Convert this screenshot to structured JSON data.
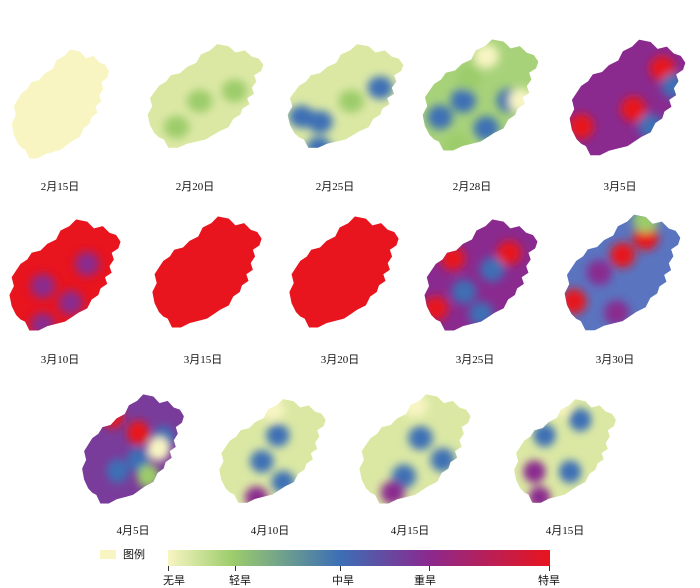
{
  "legend": {
    "title": "图例",
    "levels": [
      "无旱",
      "轻旱",
      "中旱",
      "重旱",
      "特旱"
    ],
    "colors": {
      "none": "#f8f5c3",
      "light": "#9ccc6a",
      "moderate": "#3c6fb5",
      "severe": "#8a2a8f",
      "extreme": "#e8141e"
    }
  },
  "panels": [
    {
      "date": "2月15日",
      "base": "none",
      "spots": []
    },
    {
      "date": "2月20日",
      "base": "light_pale",
      "spots": [
        {
          "level": "light",
          "u": 0.45,
          "v": 0.55
        },
        {
          "level": "light",
          "u": 0.75,
          "v": 0.45
        },
        {
          "level": "light",
          "u": 0.25,
          "v": 0.8
        }
      ]
    },
    {
      "date": "2月25日",
      "base": "light_pale",
      "spots": [
        {
          "level": "moderate",
          "u": 0.12,
          "v": 0.7
        },
        {
          "level": "moderate",
          "u": 0.28,
          "v": 0.75
        },
        {
          "level": "moderate",
          "u": 0.8,
          "v": 0.42
        },
        {
          "level": "moderate",
          "u": 0.27,
          "v": 1.0
        },
        {
          "level": "light",
          "u": 0.55,
          "v": 0.55
        }
      ]
    },
    {
      "date": "2月28日",
      "base": "mixed",
      "spots": [
        {
          "level": "moderate",
          "u": 0.15,
          "v": 0.7
        },
        {
          "level": "moderate",
          "u": 0.35,
          "v": 0.55
        },
        {
          "level": "moderate",
          "u": 0.55,
          "v": 0.8
        },
        {
          "level": "moderate",
          "u": 0.75,
          "v": 0.55
        },
        {
          "level": "none",
          "u": 0.55,
          "v": 0.15
        },
        {
          "level": "none",
          "u": 0.85,
          "v": 0.55
        },
        {
          "level": "light",
          "u": 0.4,
          "v": 0.35
        },
        {
          "level": "light",
          "u": 0.3,
          "v": 0.95
        }
      ]
    },
    {
      "date": "3月5日",
      "base": "severe",
      "spots": [
        {
          "level": "extreme",
          "u": 0.1,
          "v": 0.75
        },
        {
          "level": "extreme",
          "u": 0.55,
          "v": 0.6
        },
        {
          "level": "extreme",
          "u": 0.8,
          "v": 0.25
        },
        {
          "level": "moderate",
          "u": 0.7,
          "v": 0.75
        },
        {
          "level": "moderate",
          "u": 0.9,
          "v": 0.4
        }
      ]
    },
    {
      "date": "3月10日",
      "base": "extreme",
      "spots": [
        {
          "level": "severe",
          "u": 0.3,
          "v": 0.6
        },
        {
          "level": "severe",
          "u": 0.55,
          "v": 0.75
        },
        {
          "level": "severe",
          "u": 0.7,
          "v": 0.4
        },
        {
          "level": "severe",
          "u": 0.3,
          "v": 0.95
        }
      ]
    },
    {
      "date": "3月15日",
      "base": "extreme",
      "spots": []
    },
    {
      "date": "3月20日",
      "base": "extreme",
      "spots": []
    },
    {
      "date": "3月25日",
      "base": "severe",
      "spots": [
        {
          "level": "moderate",
          "u": 0.35,
          "v": 0.65
        },
        {
          "level": "moderate",
          "u": 0.6,
          "v": 0.45
        },
        {
          "level": "moderate",
          "u": 0.5,
          "v": 0.85
        },
        {
          "level": "extreme",
          "u": 0.25,
          "v": 0.35
        },
        {
          "level": "extreme",
          "u": 0.75,
          "v": 0.3
        },
        {
          "level": "extreme",
          "u": 0.1,
          "v": 0.8
        }
      ]
    },
    {
      "date": "3月30日",
      "base": "moderate",
      "spots": [
        {
          "level": "extreme",
          "u": 0.08,
          "v": 0.75
        },
        {
          "level": "extreme",
          "u": 0.5,
          "v": 0.35
        },
        {
          "level": "extreme",
          "u": 0.7,
          "v": 0.2
        },
        {
          "level": "severe",
          "u": 0.3,
          "v": 0.5
        },
        {
          "level": "severe",
          "u": 0.45,
          "v": 0.85
        },
        {
          "level": "light",
          "u": 0.7,
          "v": 0.05
        }
      ]
    },
    {
      "date": "4月5日",
      "base": "severe_mixed",
      "spots": [
        {
          "level": "extreme",
          "u": 0.3,
          "v": 0.2
        },
        {
          "level": "extreme",
          "u": 0.55,
          "v": 0.35
        },
        {
          "level": "moderate",
          "u": 0.55,
          "v": 0.6
        },
        {
          "level": "moderate",
          "u": 0.35,
          "v": 0.7
        },
        {
          "level": "moderate",
          "u": 0.8,
          "v": 0.4
        },
        {
          "level": "none",
          "u": 0.75,
          "v": 0.5
        },
        {
          "level": "light",
          "u": 0.65,
          "v": 0.75
        }
      ]
    },
    {
      "date": "4月10日",
      "base": "light_pale",
      "spots": [
        {
          "level": "moderate",
          "u": 0.55,
          "v": 0.35
        },
        {
          "level": "moderate",
          "u": 0.4,
          "v": 0.6
        },
        {
          "level": "moderate",
          "u": 0.6,
          "v": 0.8
        },
        {
          "level": "severe",
          "u": 0.35,
          "v": 0.95
        },
        {
          "level": "none",
          "u": 0.5,
          "v": 0.1
        }
      ]
    },
    {
      "date": "4月15日",
      "base": "light_pale",
      "spots": [
        {
          "level": "moderate",
          "u": 0.55,
          "v": 0.4
        },
        {
          "level": "moderate",
          "u": 0.4,
          "v": 0.75
        },
        {
          "level": "severe",
          "u": 0.3,
          "v": 0.9
        },
        {
          "level": "none",
          "u": 0.5,
          "v": 0.1
        },
        {
          "level": "moderate",
          "u": 0.75,
          "v": 0.6
        }
      ]
    },
    {
      "date": "4月15日",
      "base": "light_pale",
      "spots": [
        {
          "level": "moderate",
          "u": 0.3,
          "v": 0.35
        },
        {
          "level": "moderate",
          "u": 0.65,
          "v": 0.2
        },
        {
          "level": "moderate",
          "u": 0.55,
          "v": 0.7
        },
        {
          "level": "severe",
          "u": 0.2,
          "v": 0.7
        },
        {
          "level": "severe",
          "u": 0.25,
          "v": 0.95
        },
        {
          "level": "none",
          "u": 0.45,
          "v": 0.05
        }
      ]
    }
  ]
}
